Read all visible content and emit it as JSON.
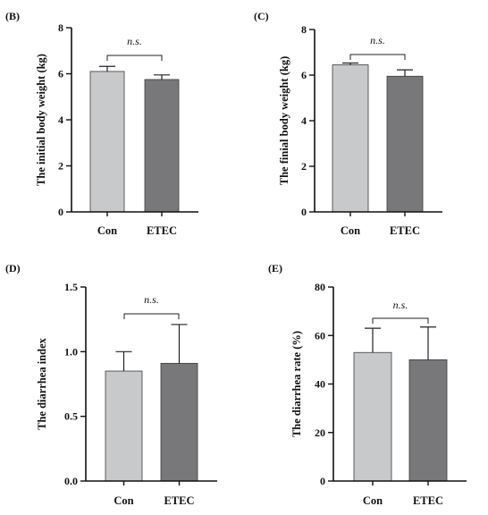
{
  "chart_data": [
    {
      "type": "bar",
      "panel": "(B)",
      "categories": [
        "Con",
        "ETEC"
      ],
      "values": [
        6.1,
        5.75
      ],
      "errors": [
        0.22,
        0.2
      ],
      "ylabel": "The initial body weight (kg)",
      "ylim": [
        0,
        8
      ],
      "yticks": [
        0,
        2,
        4,
        6,
        8
      ],
      "ytick_labels": [
        "0",
        "2",
        "4",
        "6",
        "8"
      ],
      "significance": "n.s.",
      "colors": [
        "#c8c9cb",
        "#78787a"
      ]
    },
    {
      "type": "bar",
      "panel": "(C)",
      "categories": [
        "Con",
        "ETEC"
      ],
      "values": [
        6.45,
        5.95
      ],
      "errors": [
        0.08,
        0.28
      ],
      "ylabel": "The finial body weight (kg)",
      "ylim": [
        0,
        8
      ],
      "yticks": [
        0,
        2,
        4,
        6,
        8
      ],
      "ytick_labels": [
        "0",
        "2",
        "4",
        "6",
        "8"
      ],
      "significance": "n.s.",
      "colors": [
        "#c8c9cb",
        "#78787a"
      ]
    },
    {
      "type": "bar",
      "panel": "(D)",
      "categories": [
        "Con",
        "ETEC"
      ],
      "values": [
        0.85,
        0.91
      ],
      "errors": [
        0.15,
        0.3
      ],
      "ylabel": "The diarrhea index",
      "ylim": [
        0,
        1.5
      ],
      "yticks": [
        0,
        0.5,
        1.0,
        1.5
      ],
      "ytick_labels": [
        "0.0",
        "0.5",
        "1.0",
        "1.5"
      ],
      "significance": "n.s.",
      "colors": [
        "#c8c9cb",
        "#78787a"
      ]
    },
    {
      "type": "bar",
      "panel": "(E)",
      "categories": [
        "Con",
        "ETEC"
      ],
      "values": [
        53,
        50
      ],
      "errors": [
        10,
        13.5
      ],
      "ylabel": "The diarrhea rate (%)",
      "ylim": [
        0,
        80
      ],
      "yticks": [
        0,
        20,
        40,
        60,
        80
      ],
      "ytick_labels": [
        "0",
        "20",
        "40",
        "60",
        "80"
      ],
      "significance": "n.s.",
      "colors": [
        "#c8c9cb",
        "#78787a"
      ]
    }
  ]
}
